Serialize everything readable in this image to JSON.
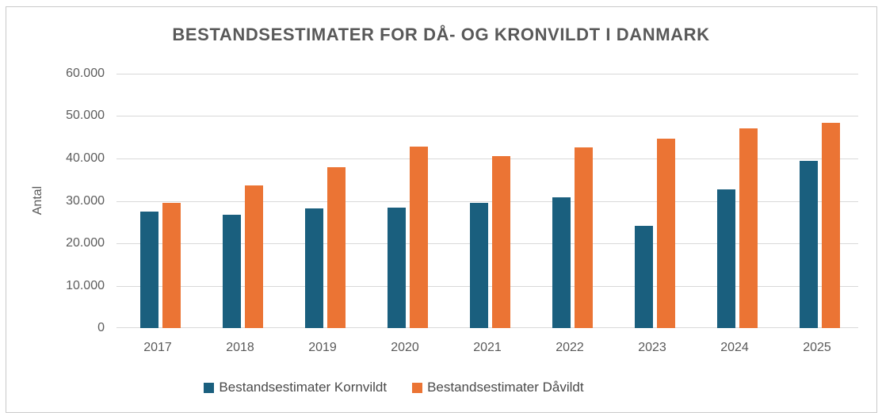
{
  "chart_data": {
    "type": "bar",
    "title": "BESTANDSESTIMATER FOR DÅ- OG KRONVILDT I DANMARK",
    "xlabel": "",
    "ylabel": "Antal",
    "categories": [
      "2017",
      "2018",
      "2019",
      "2020",
      "2021",
      "2022",
      "2023",
      "2024",
      "2025"
    ],
    "series": [
      {
        "name": "Bestandsestimater Kornvildt",
        "color": "#1a5f7e",
        "values": [
          27400,
          26800,
          28300,
          28400,
          29500,
          30800,
          24200,
          32800,
          39400
        ]
      },
      {
        "name": "Bestandsestimater Dåvildt",
        "color": "#eb7434",
        "values": [
          29500,
          33700,
          38000,
          42800,
          40600,
          42600,
          44600,
          47200,
          48400
        ]
      }
    ],
    "ylim": [
      0,
      60000
    ],
    "ytick_labels": [
      "0",
      "10.000",
      "20.000",
      "30.000",
      "40.000",
      "50.000",
      "60.000"
    ],
    "grid": "horizontal",
    "legend_position": "bottom"
  },
  "colors": {
    "background": "#ffffff",
    "border": "#c9c9c9",
    "gridline": "#d9d9d9",
    "axis_text": "#595959",
    "title_text": "#595959",
    "legend_text": "#4a4a4a"
  }
}
